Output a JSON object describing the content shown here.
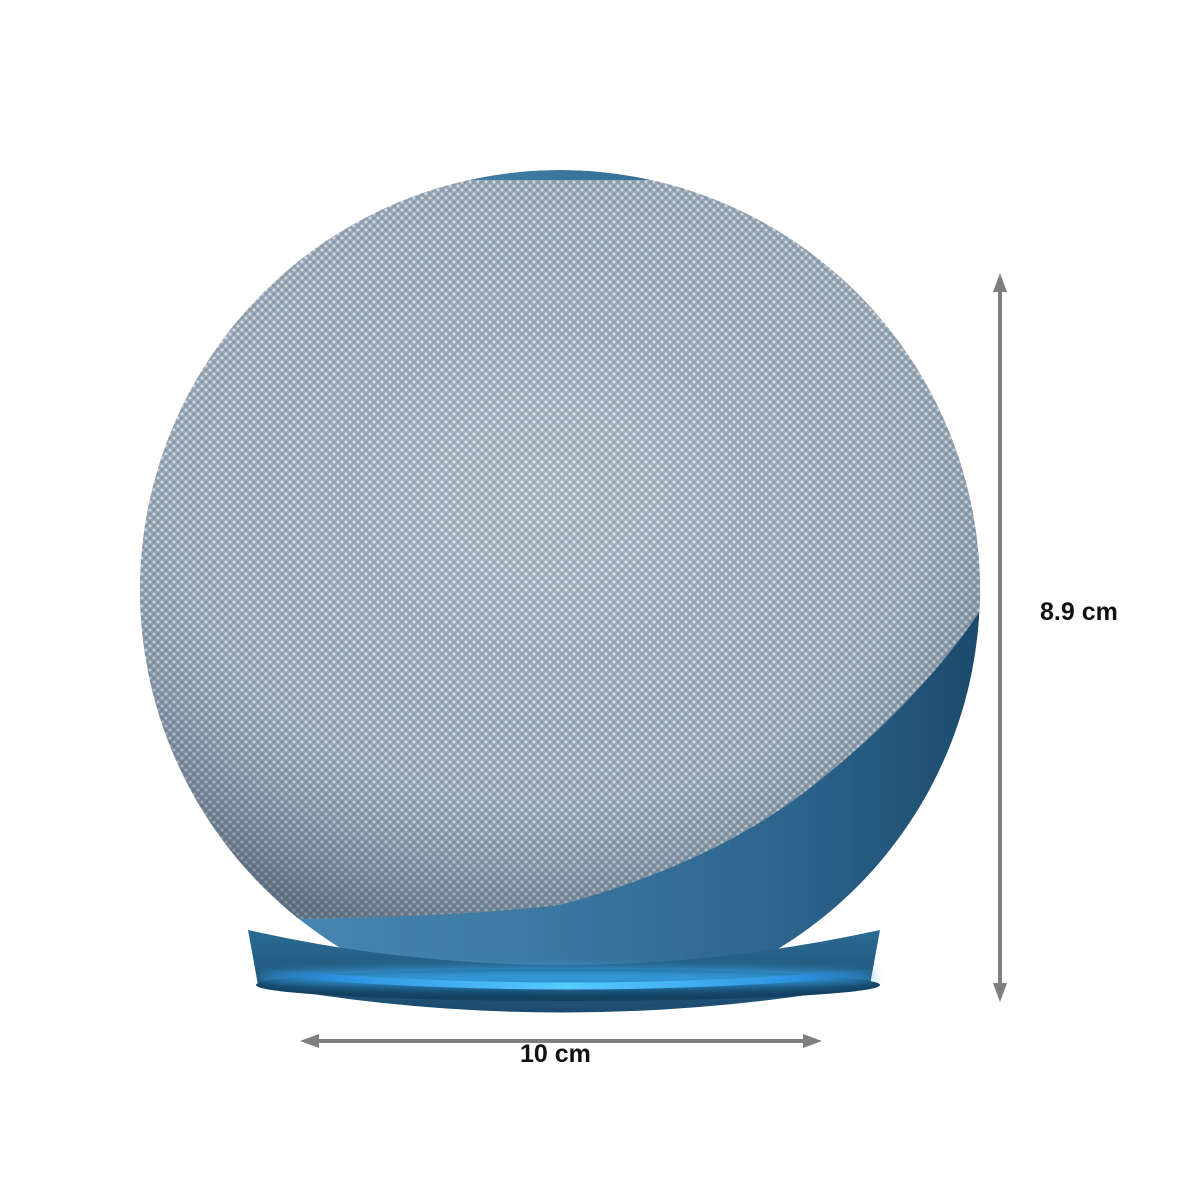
{
  "product": {
    "image_subject": "spherical-smart-speaker",
    "colors": {
      "fabric": "#8a9bab",
      "fabric_light": "#c4ced8",
      "shell": "#3f79a0",
      "shell_dark": "#1f4f72",
      "light_ring": "#3fb6ff",
      "dimension_line": "#7f7f7f"
    }
  },
  "dimensions": {
    "height": "8.9 cm",
    "width": "10 cm"
  }
}
